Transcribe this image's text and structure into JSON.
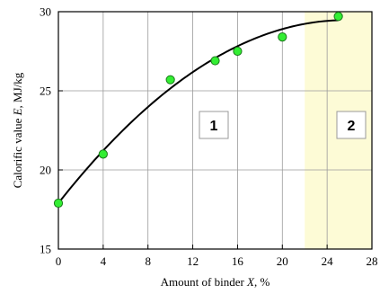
{
  "chart_data": {
    "type": "scatter",
    "xlabel": {
      "prefix": "Amount of binder ",
      "var": "X",
      "suffix": ", %"
    },
    "ylabel": {
      "prefix": "Calorific value ",
      "var": "E",
      "suffix": ", MJ/kg"
    },
    "xlim": [
      0,
      28
    ],
    "ylim": [
      15,
      30
    ],
    "xticks": [
      0,
      4,
      8,
      12,
      16,
      20,
      24,
      28
    ],
    "yticks": [
      15,
      20,
      25,
      30
    ],
    "grid": true,
    "points": [
      {
        "x": 0,
        "y": 17.9
      },
      {
        "x": 4,
        "y": 21.0
      },
      {
        "x": 10,
        "y": 25.7
      },
      {
        "x": 14,
        "y": 26.9
      },
      {
        "x": 16,
        "y": 27.5
      },
      {
        "x": 20,
        "y": 28.4
      },
      {
        "x": 25,
        "y": 29.7
      }
    ],
    "fit_curve": {
      "type": "polynomial-2",
      "x_range": [
        0,
        25
      ],
      "coefficients": [
        17.9,
        0.9,
        -0.0175
      ]
    },
    "regions": [
      {
        "label": "1",
        "x_range": [
          0,
          22
        ],
        "color": "#ffffff"
      },
      {
        "label": "2",
        "x_range": [
          22,
          28
        ],
        "color": "#fdfbd6"
      }
    ],
    "colors": {
      "point": "#33ee33",
      "point_stroke": "#1a7a1a",
      "curve": "#000000",
      "grid": "#9a9a9a"
    }
  }
}
